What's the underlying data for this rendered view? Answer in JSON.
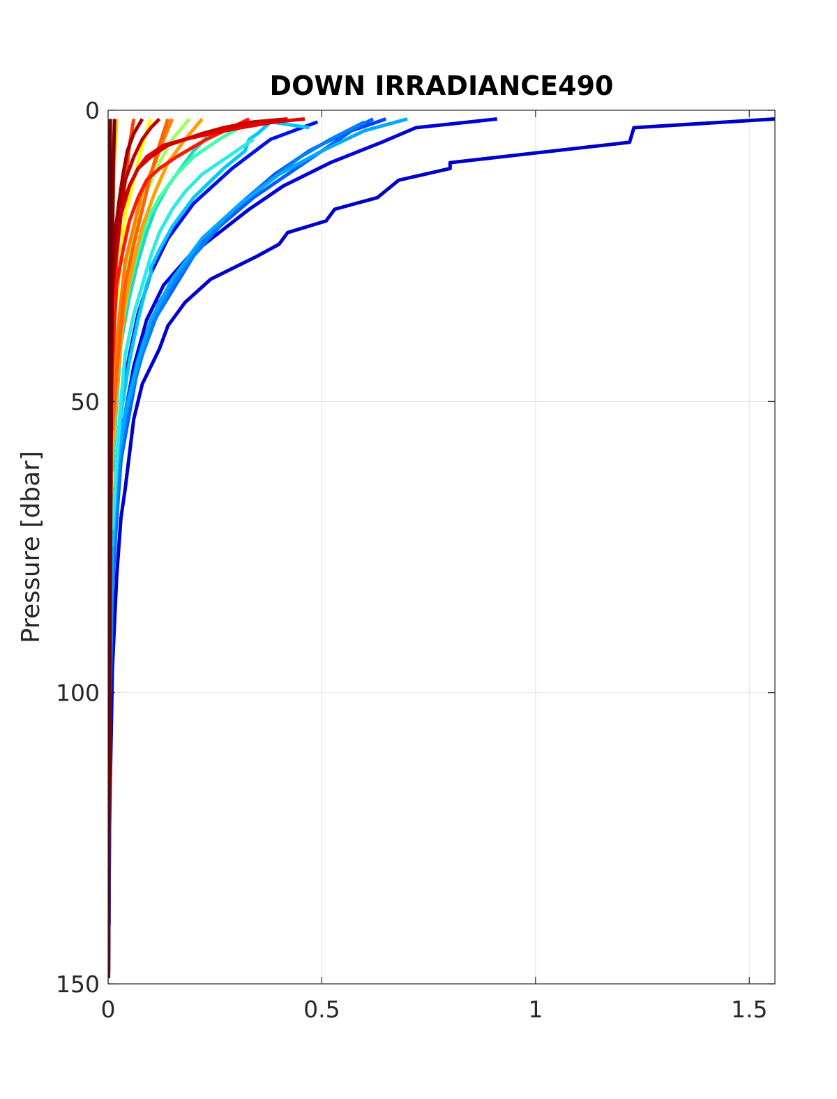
{
  "chart_data": {
    "type": "line",
    "title": "DOWN IRRADIANCE490",
    "xlabel": "",
    "ylabel": "Pressure [dbar]",
    "xlim": [
      0,
      1.56
    ],
    "ylim": [
      0,
      150
    ],
    "y_reversed": true,
    "grid": true,
    "legend": "none",
    "xticks": [
      "0",
      "0.5",
      "1",
      "1.5"
    ],
    "xtick_values": [
      0,
      0.5,
      1,
      1.5
    ],
    "yticks": [
      "0",
      "50",
      "100",
      "150"
    ],
    "ytick_values": [
      0,
      50,
      100,
      150
    ],
    "series": [
      {
        "color": "#0000c8",
        "x": [
          1.56,
          1.23,
          1.22,
          0.8,
          0.8,
          0.68,
          0.63,
          0.53,
          0.51,
          0.42,
          0.4,
          0.35,
          0.24,
          0.18,
          0.14,
          0.12,
          0.08,
          0.06,
          0.05,
          0.04,
          0.03,
          0.02,
          0.015,
          0.01,
          0.008,
          0.005,
          0.003,
          0.002,
          0.001
        ],
        "y": [
          1.5,
          3,
          5.5,
          9,
          10,
          12,
          15,
          17,
          19,
          21,
          23,
          25,
          29,
          33,
          37,
          41,
          47,
          53,
          59,
          65,
          70,
          80,
          88,
          96,
          104,
          115,
          125,
          135,
          148
        ]
      },
      {
        "color": "#0000d8",
        "x": [
          0.91,
          0.72,
          0.64,
          0.52,
          0.41,
          0.33,
          0.26,
          0.19,
          0.13,
          0.09,
          0.06,
          0.04,
          0.03,
          0.02,
          0.01,
          0.005,
          0.003,
          0.001
        ],
        "y": [
          1.5,
          3,
          5.5,
          9,
          13,
          17,
          21,
          25,
          30,
          36,
          44,
          52,
          60,
          70,
          80,
          95,
          115,
          148
        ]
      },
      {
        "color": "#0010e8",
        "x": [
          0.49,
          0.38,
          0.29,
          0.2,
          0.14,
          0.1,
          0.07,
          0.05,
          0.03,
          0.02,
          0.01,
          0.005,
          0.002
        ],
        "y": [
          2,
          5,
          10,
          16,
          22,
          28,
          35,
          42,
          50,
          60,
          72,
          90,
          140
        ]
      },
      {
        "color": "#0040ff",
        "x": [
          0.65,
          0.55,
          0.47,
          0.39,
          0.31,
          0.24,
          0.17,
          0.12,
          0.08,
          0.05,
          0.03,
          0.02,
          0.01,
          0.005,
          0.002
        ],
        "y": [
          1.5,
          4,
          7,
          11,
          16,
          21,
          27,
          33,
          40,
          48,
          56,
          65,
          76,
          92,
          140
        ]
      },
      {
        "color": "#0060ff",
        "x": [
          0.62,
          0.58,
          0.5,
          0.42,
          0.34,
          0.26,
          0.2,
          0.15,
          0.1,
          0.07,
          0.05,
          0.03,
          0.02,
          0.01,
          0.005
        ],
        "y": [
          1.5,
          3,
          7,
          11,
          15,
          20,
          25,
          31,
          37,
          44,
          52,
          60,
          70,
          82,
          100
        ]
      },
      {
        "color": "#0080ff",
        "x": [
          0.6,
          0.52,
          0.45,
          0.36,
          0.28,
          0.21,
          0.15,
          0.11,
          0.08,
          0.05,
          0.03,
          0.02,
          0.01,
          0.005
        ],
        "y": [
          2,
          5,
          8,
          13,
          18,
          24,
          30,
          36,
          42,
          50,
          58,
          68,
          80,
          98
        ]
      },
      {
        "color": "#00a8ff",
        "x": [
          0.7,
          0.6,
          0.5,
          0.4,
          0.31,
          0.22,
          0.15,
          0.1,
          0.07,
          0.04,
          0.02,
          0.01,
          0.005
        ],
        "y": [
          1.5,
          3.5,
          7,
          11,
          16,
          22,
          29,
          36,
          43,
          52,
          62,
          75,
          92
        ]
      },
      {
        "color": "#00c8ff",
        "x": [
          0.47,
          0.38,
          0.35,
          0.33,
          0.32,
          0.27,
          0.2,
          0.15,
          0.12,
          0.1,
          0.1,
          0.09,
          0.07,
          0.05,
          0.03,
          0.02,
          0.01
        ],
        "y": [
          3,
          2,
          4,
          5,
          7,
          10,
          15,
          20,
          24,
          27,
          28,
          30,
          36,
          43,
          52,
          62,
          75
        ]
      },
      {
        "color": "#30e8e8",
        "x": [
          0.34,
          0.3,
          0.26,
          0.22,
          0.18,
          0.15,
          0.12,
          0.1,
          0.08,
          0.06,
          0.04,
          0.03,
          0.02,
          0.01
        ],
        "y": [
          5,
          7,
          9,
          11,
          14,
          17,
          21,
          25,
          30,
          35,
          42,
          50,
          60,
          72
        ]
      },
      {
        "color": "#20d8c0",
        "x": [
          0.24,
          0.2,
          0.17,
          0.14,
          0.11,
          0.09,
          0.07,
          0.05,
          0.03,
          0.02,
          0.01
        ],
        "y": [
          4,
          7,
          10,
          13,
          17,
          21,
          26,
          32,
          40,
          50,
          62
        ]
      },
      {
        "color": "#40ffa8",
        "x": [
          0.33,
          0.26,
          0.2,
          0.16,
          0.12,
          0.09,
          0.07,
          0.05,
          0.03,
          0.02,
          0.01
        ],
        "y": [
          2,
          5,
          8,
          11,
          15,
          19,
          24,
          30,
          38,
          48,
          60
        ]
      },
      {
        "color": "#a0ff60",
        "x": [
          0.19,
          0.15,
          0.12,
          0.09,
          0.07,
          0.05,
          0.03,
          0.02,
          0.01
        ],
        "y": [
          1.5,
          5,
          9,
          14,
          19,
          25,
          32,
          40,
          50
        ]
      },
      {
        "color": "#ffff00",
        "x": [
          0.1,
          0.08,
          0.06,
          0.04,
          0.03,
          0.02,
          0.01,
          0.005
        ],
        "y": [
          1.5,
          6,
          12,
          18,
          25,
          32,
          40,
          50
        ]
      },
      {
        "color": "#ffc800",
        "x": [
          0.02,
          0.015,
          0.01,
          0.008,
          0.005,
          0.003,
          0.001
        ],
        "y": [
          1.5,
          8,
          20,
          35,
          50,
          70,
          100
        ]
      },
      {
        "color": "#ffa000",
        "x": [
          0.22,
          0.18,
          0.14,
          0.11,
          0.08,
          0.06,
          0.04,
          0.03,
          0.02,
          0.01,
          0.005
        ],
        "y": [
          1.5,
          5,
          9,
          14,
          20,
          26,
          33,
          40,
          48,
          58,
          70
        ]
      },
      {
        "color": "#ff8000",
        "x": [
          0.15,
          0.13,
          0.11,
          0.08,
          0.06,
          0.04,
          0.03,
          0.02,
          0.01,
          0.005
        ],
        "y": [
          1.5,
          5,
          9,
          14,
          20,
          26,
          33,
          40,
          50,
          62
        ]
      },
      {
        "color": "#ff6000",
        "x": [
          0.14,
          0.12,
          0.1,
          0.08,
          0.06,
          0.04,
          0.03,
          0.02,
          0.01
        ],
        "y": [
          1.5,
          6,
          11,
          17,
          23,
          30,
          37,
          45,
          55
        ]
      },
      {
        "color": "#ff4000",
        "x": [
          0.06,
          0.05,
          0.04,
          0.03,
          0.02,
          0.015,
          0.01,
          0.005
        ],
        "y": [
          1.5,
          6,
          12,
          18,
          25,
          32,
          42,
          55
        ]
      },
      {
        "color": "#ff1800",
        "x": [
          0.33,
          0.23,
          0.16,
          0.12,
          0.09,
          0.07,
          0.05,
          0.035,
          0.02,
          0.015,
          0.01,
          0.005
        ],
        "y": [
          1.5,
          5,
          8,
          10,
          12,
          15,
          19,
          24,
          30,
          36,
          44,
          55
        ]
      },
      {
        "color": "#e80000",
        "x": [
          0.46,
          0.39,
          0.31,
          0.24,
          0.18,
          0.13,
          0.09,
          0.07,
          0.05,
          0.03,
          0.02,
          0.01
        ],
        "y": [
          1.5,
          2,
          3,
          4,
          5,
          6,
          8,
          10,
          13,
          18,
          24,
          32
        ]
      },
      {
        "color": "#d00000",
        "x": [
          0.42,
          0.34,
          0.27,
          0.22,
          0.18,
          0.14,
          0.1,
          0.07,
          0.05,
          0.03,
          0.02,
          0.01
        ],
        "y": [
          1.5,
          2,
          3,
          4,
          5,
          6,
          8,
          10,
          13,
          17,
          22,
          30
        ]
      },
      {
        "color": "#c00000",
        "x": [
          0.12,
          0.1,
          0.08,
          0.06,
          0.04,
          0.03,
          0.02,
          0.01,
          0.005
        ],
        "y": [
          1.5,
          3,
          5,
          8,
          12,
          17,
          23,
          30,
          40
        ]
      },
      {
        "color": "#a00000",
        "x": [
          0.08,
          0.06,
          0.045,
          0.035,
          0.025,
          0.015,
          0.01,
          0.005
        ],
        "y": [
          1.5,
          4,
          7,
          11,
          16,
          22,
          30,
          40
        ]
      },
      {
        "color": "#800000",
        "x": [
          0.015,
          0.012,
          0.01,
          0.008,
          0.006,
          0.004,
          0.002,
          0.001
        ],
        "y": [
          1.5,
          10,
          25,
          45,
          70,
          95,
          120,
          149
        ]
      },
      {
        "color": "#700000",
        "x": [
          0.005,
          0.004,
          0.003,
          0.002,
          0.001,
          0.0005
        ],
        "y": [
          1.5,
          20,
          50,
          80,
          110,
          149
        ]
      }
    ]
  }
}
